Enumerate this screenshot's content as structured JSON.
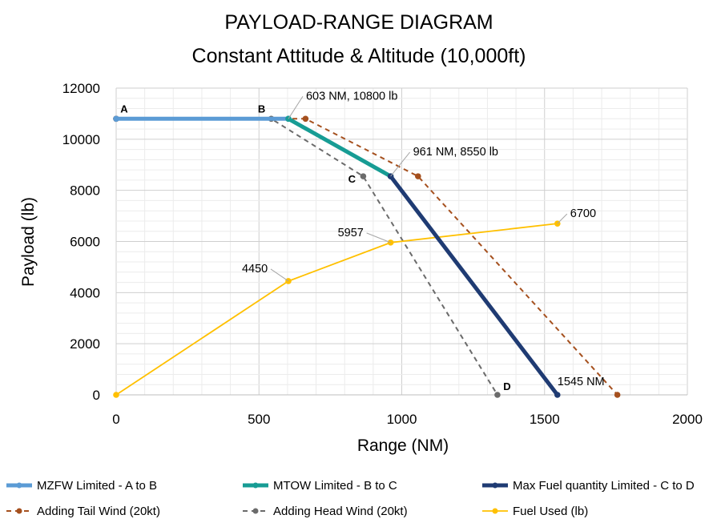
{
  "chart_data": {
    "type": "line",
    "title": "PAYLOAD-RANGE DIAGRAM",
    "subtitle": "Constant Attitude & Altitude (10,000ft)",
    "xlabel": "Range (NM)",
    "ylabel": "Payload (lb)",
    "xlim": [
      0,
      2000
    ],
    "ylim": [
      0,
      12000
    ],
    "xticks": [
      0,
      500,
      1000,
      1500,
      2000
    ],
    "yticks": [
      0,
      2000,
      4000,
      6000,
      8000,
      10000,
      12000
    ],
    "grid": true,
    "legend_position": "bottom",
    "series": [
      {
        "name": "MZFW Limited - A to B",
        "color": "#5b9bd5",
        "style": "solid-thick",
        "points": [
          [
            0,
            10800
          ],
          [
            603,
            10800
          ]
        ]
      },
      {
        "name": "MTOW Limited - B to C",
        "color": "#179c94",
        "style": "solid-thick",
        "points": [
          [
            603,
            10800
          ],
          [
            961,
            8550
          ]
        ]
      },
      {
        "name": "Max Fuel quantity Limited - C to D",
        "color": "#1f3b73",
        "style": "solid-thick",
        "points": [
          [
            961,
            8550
          ],
          [
            1545,
            0
          ]
        ]
      },
      {
        "name": "Adding Tail Wind (20kt)",
        "color": "#a5501e",
        "style": "dashed",
        "points": [
          [
            0,
            10800
          ],
          [
            663,
            10800
          ],
          [
            1057,
            8550
          ],
          [
            1755,
            0
          ]
        ]
      },
      {
        "name": "Adding Head Wind (20kt)",
        "color": "#6b6b6b",
        "style": "dashed",
        "points": [
          [
            0,
            10800
          ],
          [
            543,
            10800
          ],
          [
            865,
            8550
          ],
          [
            1335,
            0
          ]
        ]
      },
      {
        "name": "Fuel Used (lb)",
        "color": "#ffc000",
        "style": "solid-thin",
        "points": [
          [
            0,
            0
          ],
          [
            603,
            4450
          ],
          [
            961,
            5957
          ],
          [
            1545,
            6700
          ]
        ]
      }
    ],
    "point_labels": [
      {
        "text": "A",
        "x": 0,
        "y": 10800
      },
      {
        "text": "B",
        "x": 543,
        "y": 10800
      },
      {
        "text": "C",
        "x": 865,
        "y": 8550
      },
      {
        "text": "D",
        "x": 1335,
        "y": 0
      }
    ],
    "annotations": [
      {
        "text": "603 NM, 10800 lb",
        "x": 603,
        "y": 10800
      },
      {
        "text": "961 NM, 8550 lb",
        "x": 961,
        "y": 8550
      },
      {
        "text": "1545 NM",
        "x": 1545,
        "y": 0
      },
      {
        "text": "4450",
        "x": 603,
        "y": 4450
      },
      {
        "text": "5957",
        "x": 961,
        "y": 5957
      },
      {
        "text": "6700",
        "x": 1545,
        "y": 6700
      }
    ]
  }
}
